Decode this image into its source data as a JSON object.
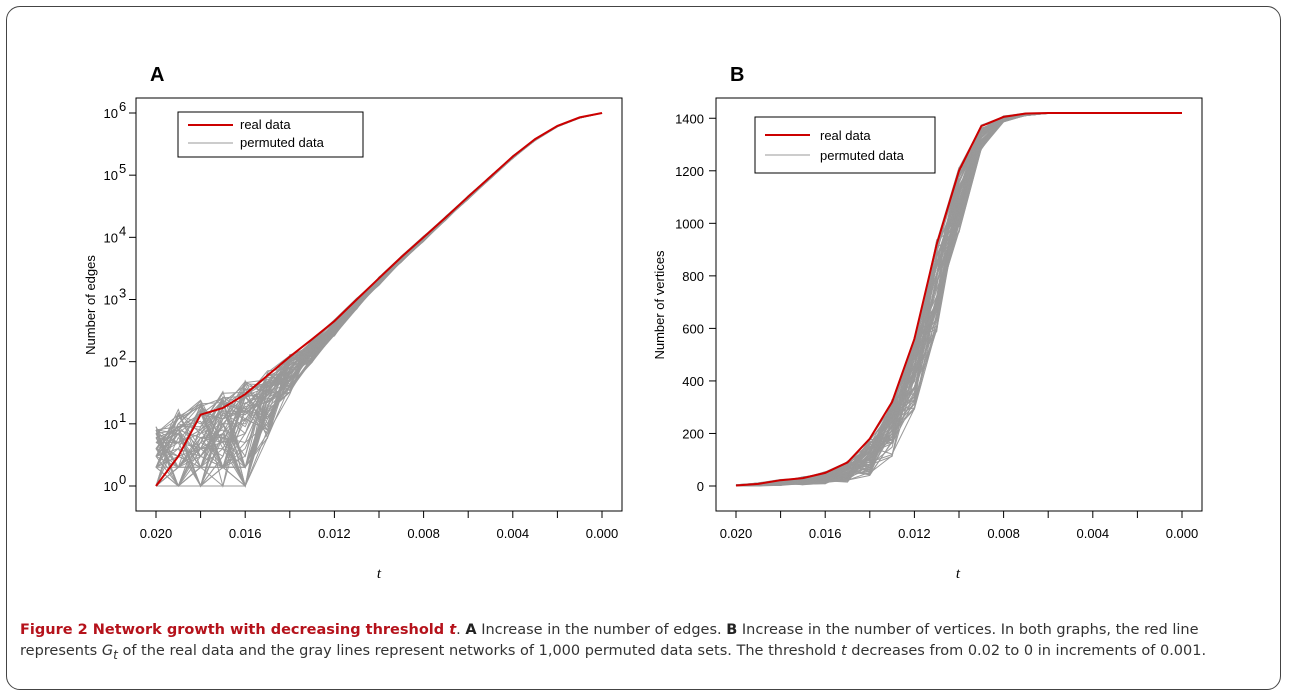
{
  "caption": {
    "label": "Figure 2",
    "title_prefix": "Network growth with decreasing threshold ",
    "title_var": "t",
    "text_a_letter": "A",
    "text_a": " Increase in the number of edges. ",
    "text_b_letter": "B",
    "text_b": " Increase in the number of vertices. In both graphs, the red line represents ",
    "text_g": "G",
    "text_g_sub": "t",
    "text_rest": " of the real data and the gray lines represent networks of 1,000 permuted data sets. The threshold ",
    "text_t": "t",
    "text_end": " decreases from 0.02 to 0 in increments of 0.001."
  },
  "colors": {
    "real": "#cc0000",
    "permuted": "#999999"
  },
  "chart_data": [
    {
      "type": "line",
      "panel": "A",
      "xlabel": "t",
      "ylabel": "Number of edges",
      "y_scale": "log",
      "xlim": [
        0.02,
        0.0
      ],
      "ylim_exp": [
        0,
        6
      ],
      "x_ticks": [
        0.02,
        0.018,
        0.016,
        0.014,
        0.012,
        0.01,
        0.008,
        0.006,
        0.004,
        0.002,
        0.0
      ],
      "x_tick_labels": [
        "0.020",
        "",
        "0.016",
        "",
        "0.012",
        "",
        "0.008",
        "",
        "0.004",
        "",
        "0.000"
      ],
      "y_ticks": [
        1,
        10,
        100,
        1000,
        10000,
        100000,
        1000000
      ],
      "y_tick_base": "10",
      "y_tick_exponents": [
        "0",
        "1",
        "2",
        "3",
        "4",
        "5",
        "6"
      ],
      "legend": {
        "placement": "top-left",
        "entries": [
          "real data",
          "permuted data"
        ]
      },
      "x": [
        0.02,
        0.019,
        0.018,
        0.017,
        0.016,
        0.015,
        0.014,
        0.013,
        0.012,
        0.011,
        0.01,
        0.009,
        0.008,
        0.007,
        0.006,
        0.005,
        0.004,
        0.003,
        0.002,
        0.001,
        0.0
      ],
      "series": [
        {
          "name": "real data",
          "values": [
            1,
            3,
            14,
            18,
            30,
            60,
            120,
            230,
            450,
            1000,
            2200,
            4800,
            10000,
            21000,
            45000,
            95000,
            200000,
            380000,
            620000,
            850000,
            1000000
          ]
        },
        {
          "name": "permuted data",
          "band_lower": [
            1,
            1,
            1,
            1,
            1,
            6,
            30,
            95,
            260,
            700,
            1700,
            4000,
            8600,
            19000,
            41000,
            88000,
            185000,
            360000,
            600000,
            830000,
            1000000
          ],
          "band_upper": [
            9,
            18,
            25,
            35,
            50,
            75,
            130,
            240,
            470,
            1050,
            2300,
            5000,
            10500,
            22000,
            47000,
            97000,
            205000,
            385000,
            625000,
            855000,
            1000000
          ]
        }
      ]
    },
    {
      "type": "line",
      "panel": "B",
      "xlabel": "t",
      "ylabel": "Number of vertices",
      "y_scale": "linear",
      "xlim": [
        0.02,
        0.0
      ],
      "ylim": [
        0,
        1420
      ],
      "x_ticks": [
        0.02,
        0.018,
        0.016,
        0.014,
        0.012,
        0.01,
        0.008,
        0.006,
        0.004,
        0.002,
        0.0
      ],
      "x_tick_labels": [
        "0.020",
        "",
        "0.016",
        "",
        "0.012",
        "",
        "0.008",
        "",
        "0.004",
        "",
        "0.000"
      ],
      "y_ticks": [
        0,
        200,
        400,
        600,
        800,
        1000,
        1200,
        1400
      ],
      "y_tick_labels": [
        "0",
        "200",
        "400",
        "600",
        "800",
        "1000",
        "1200",
        "1400"
      ],
      "legend": {
        "placement": "top-left",
        "entries": [
          "real data",
          "permuted data"
        ]
      },
      "x": [
        0.02,
        0.019,
        0.018,
        0.017,
        0.016,
        0.015,
        0.014,
        0.013,
        0.012,
        0.011,
        0.01,
        0.009,
        0.008,
        0.007,
        0.006,
        0.005,
        0.004,
        0.003,
        0.002,
        0.001,
        0.0
      ],
      "series": [
        {
          "name": "real data",
          "values": [
            2,
            8,
            22,
            30,
            50,
            90,
            180,
            320,
            560,
            920,
            1200,
            1370,
            1405,
            1418,
            1420,
            1420,
            1420,
            1420,
            1420,
            1420,
            1420
          ]
        },
        {
          "name": "permuted data",
          "band_lower": [
            0,
            0,
            2,
            4,
            8,
            15,
            40,
            110,
            290,
            580,
            960,
            1280,
            1385,
            1410,
            1418,
            1420,
            1420,
            1420,
            1420,
            1420,
            1420
          ],
          "band_upper": [
            5,
            12,
            25,
            35,
            55,
            95,
            185,
            330,
            570,
            940,
            1220,
            1375,
            1410,
            1420,
            1420,
            1420,
            1420,
            1420,
            1420,
            1420,
            1420
          ]
        }
      ]
    }
  ]
}
